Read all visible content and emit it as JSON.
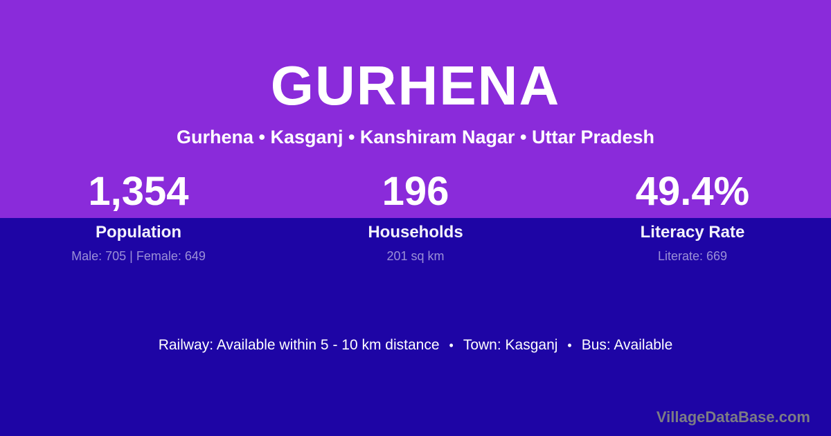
{
  "theme": {
    "top_background": "#8A2BDA",
    "bottom_background": "#1E05A5",
    "text_color": "#FFFFFF",
    "muted_text_color": "rgba(255,255,255,0.55)",
    "watermark_color": "#7C7C84"
  },
  "header": {
    "title": "GURHENA",
    "subtitle": "Gurhena • Kasganj • Kanshiram Nagar • Uttar Pradesh"
  },
  "stats": [
    {
      "value": "1,354",
      "label": "Population",
      "detail": "Male: 705 | Female: 649"
    },
    {
      "value": "196",
      "label": "Households",
      "detail": "201 sq km"
    },
    {
      "value": "49.4%",
      "label": "Literacy Rate",
      "detail": "Literate: 669"
    }
  ],
  "info_line": {
    "railway": "Railway: Available within 5 - 10 km distance",
    "separator": "•",
    "town": "Town: Kasganj",
    "bus": "Bus: Available"
  },
  "watermark": "VillageDataBase.com"
}
